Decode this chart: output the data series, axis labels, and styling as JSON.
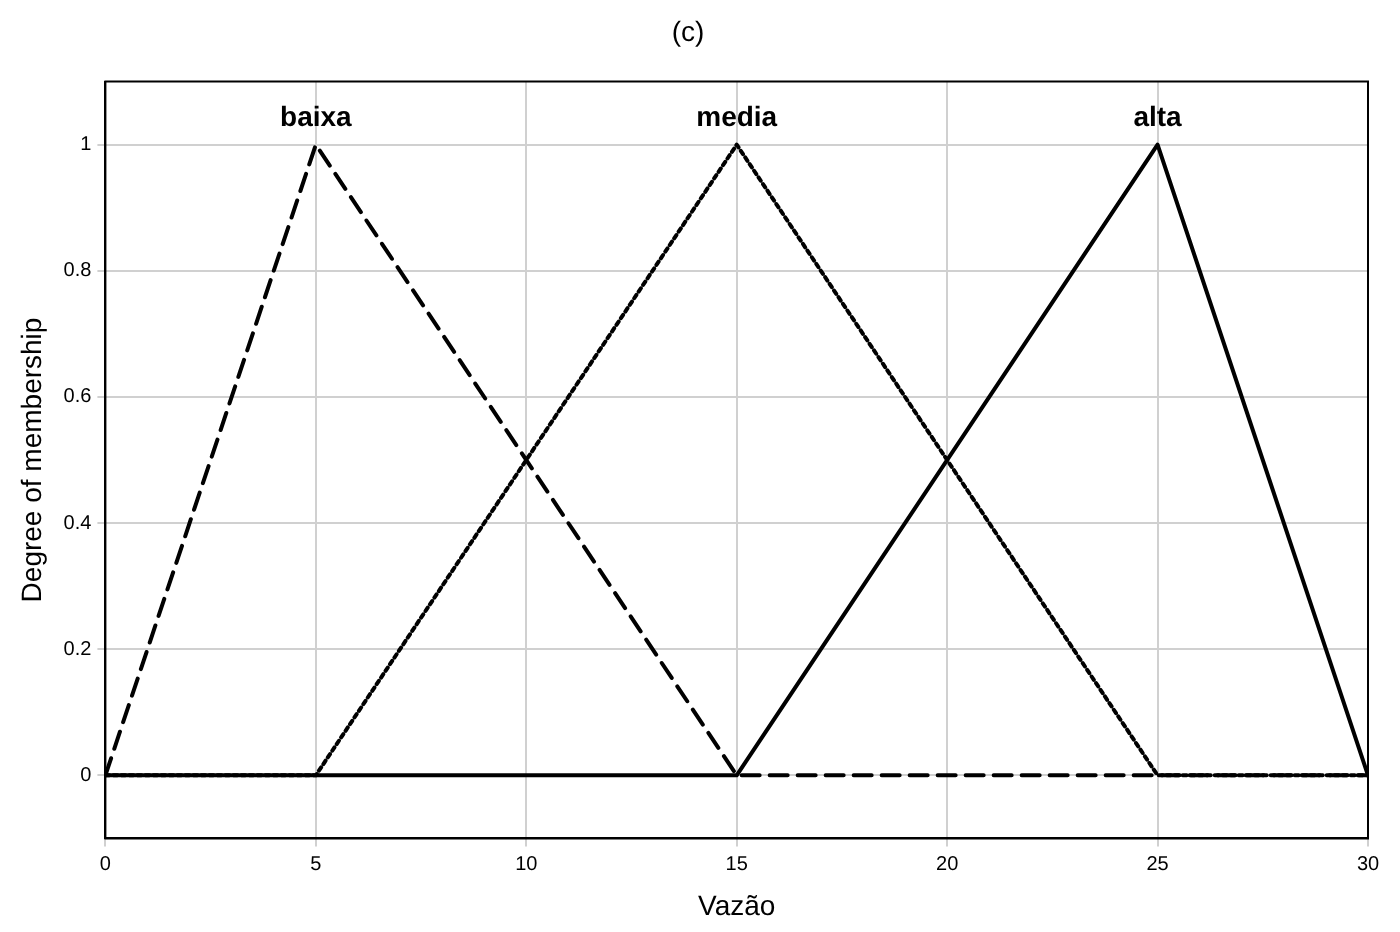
{
  "chart_data": {
    "type": "line",
    "title": "(c)",
    "xlabel": "Vazão",
    "ylabel": "Degree of membership",
    "xlim": [
      0,
      30
    ],
    "xticks": [
      0,
      5,
      10,
      15,
      20,
      25,
      30
    ],
    "ylim": [
      -0.1,
      1.1
    ],
    "yticks": [
      0,
      0.2,
      0.4,
      0.6,
      0.8,
      1
    ],
    "grid": true,
    "legend": false,
    "marker": "none",
    "series": [
      {
        "name": "baixa",
        "color": "#000000",
        "line_style": "dashed",
        "x": [
          0,
          5,
          15,
          30
        ],
        "values": [
          0,
          1,
          0,
          0
        ]
      },
      {
        "name": "media",
        "color": "#000000",
        "line_style": "dotted",
        "x": [
          0,
          5,
          15,
          25,
          30
        ],
        "values": [
          0,
          0,
          1,
          0,
          0
        ]
      },
      {
        "name": "alta",
        "color": "#000000",
        "line_style": "solid",
        "x": [
          0,
          15,
          25,
          30
        ],
        "values": [
          0,
          0,
          1,
          0
        ]
      }
    ]
  }
}
